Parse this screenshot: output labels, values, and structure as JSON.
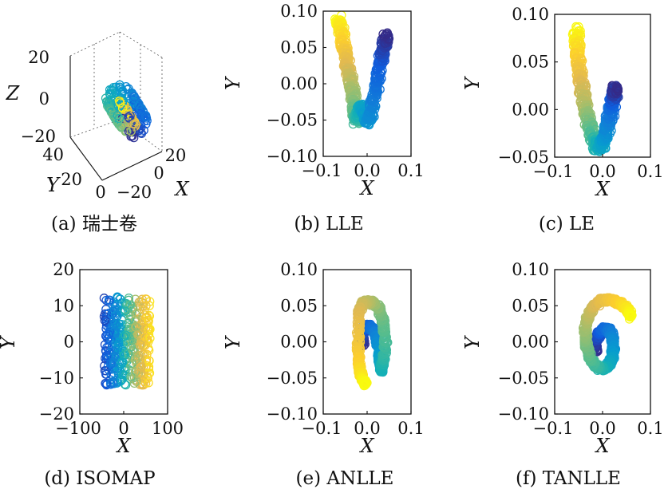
{
  "chart_data": [
    {
      "id": "a",
      "type": "scatter3d",
      "caption": "(a) 瑞士卷",
      "xlabel": "X",
      "ylabel": "Y",
      "zlabel": "Z",
      "x_ticks": [
        "−20",
        "0",
        "20"
      ],
      "y_ticks": [
        "0",
        "20",
        "40"
      ],
      "z_ticks": [
        "20",
        "0",
        "−20"
      ],
      "xlim": [
        -20,
        20
      ],
      "ylim": [
        0,
        40
      ],
      "zlim": [
        -20,
        20
      ],
      "shape": "swiss-roll"
    },
    {
      "id": "b",
      "type": "scatter",
      "caption": "(b) LLE",
      "xlabel": "X",
      "ylabel": "Y",
      "xlim": [
        -0.1,
        0.1
      ],
      "ylim": [
        -0.1,
        0.1
      ],
      "x_ticks": [
        {
          "v": -0.1,
          "t": "−0.1"
        },
        {
          "v": 0,
          "t": "0.0"
        },
        {
          "v": 0.1,
          "t": "0.1"
        }
      ],
      "y_ticks": [
        {
          "v": 0.1,
          "t": "0.10"
        },
        {
          "v": 0.05,
          "t": "0.05"
        },
        {
          "v": 0,
          "t": "0.00"
        },
        {
          "v": -0.05,
          "t": "−0.05"
        },
        {
          "v": -0.1,
          "t": "−0.10"
        }
      ],
      "shape": "v",
      "series": [
        {
          "x": [
            -0.065,
            -0.06,
            -0.055,
            -0.05,
            -0.045,
            -0.04,
            -0.035,
            -0.03,
            -0.027,
            -0.025,
            -0.02,
            -0.015,
            -0.008,
            0.0,
            0.01,
            0.018,
            0.025,
            0.032,
            0.038,
            0.043
          ],
          "y": [
            0.09,
            0.075,
            0.058,
            0.042,
            0.026,
            0.01,
            -0.006,
            -0.022,
            -0.038,
            -0.05,
            -0.045,
            -0.035,
            -0.03,
            -0.055,
            -0.04,
            -0.015,
            0.01,
            0.032,
            0.05,
            0.065
          ]
        }
      ]
    },
    {
      "id": "c",
      "type": "scatter",
      "caption": "(c) LE",
      "xlabel": "X",
      "ylabel": "Y",
      "xlim": [
        -0.1,
        0.1
      ],
      "ylim": [
        -0.05,
        0.1
      ],
      "x_ticks": [
        {
          "v": -0.1,
          "t": "−0.1"
        },
        {
          "v": 0,
          "t": "0.0"
        },
        {
          "v": 0.1,
          "t": "0.1"
        }
      ],
      "y_ticks": [
        {
          "v": 0.1,
          "t": "0.10"
        },
        {
          "v": 0.05,
          "t": "0.05"
        },
        {
          "v": 0,
          "t": "0.00"
        },
        {
          "v": -0.05,
          "t": "−0.05"
        }
      ],
      "shape": "v",
      "series": [
        {
          "x": [
            -0.055,
            -0.053,
            -0.05,
            -0.047,
            -0.043,
            -0.038,
            -0.033,
            -0.027,
            -0.02,
            -0.012,
            -0.005,
            0.002,
            0.008,
            0.013,
            0.018,
            0.022,
            0.025,
            0.027
          ],
          "y": [
            0.083,
            0.068,
            0.052,
            0.037,
            0.022,
            0.008,
            -0.006,
            -0.018,
            -0.029,
            -0.037,
            -0.039,
            -0.034,
            -0.024,
            -0.012,
            0.0,
            0.01,
            0.017,
            0.022
          ]
        }
      ]
    },
    {
      "id": "d",
      "type": "scatter",
      "caption": "(d) ISOMAP",
      "xlabel": "X",
      "ylabel": "Y",
      "xlim": [
        -100,
        100
      ],
      "ylim": [
        -20,
        20
      ],
      "x_ticks": [
        {
          "v": -100,
          "t": "−100"
        },
        {
          "v": 0,
          "t": "0"
        },
        {
          "v": 100,
          "t": "100"
        }
      ],
      "y_ticks": [
        {
          "v": 20,
          "t": "20"
        },
        {
          "v": 10,
          "t": "10"
        },
        {
          "v": 0,
          "t": "0"
        },
        {
          "v": -10,
          "t": "−10"
        },
        {
          "v": -20,
          "t": "−20"
        }
      ],
      "shape": "rectangle",
      "region": {
        "x": [
          -45,
          60
        ],
        "y": [
          -12,
          12.5
        ]
      }
    },
    {
      "id": "e",
      "type": "scatter",
      "caption": "(e) ANLLE",
      "xlabel": "X",
      "ylabel": "Y",
      "xlim": [
        -0.1,
        0.1
      ],
      "ylim": [
        -0.1,
        0.1
      ],
      "x_ticks": [
        {
          "v": -0.1,
          "t": "−0.1"
        },
        {
          "v": 0,
          "t": "0.0"
        },
        {
          "v": 0.1,
          "t": "0.1"
        }
      ],
      "y_ticks": [
        {
          "v": 0.1,
          "t": "0.10"
        },
        {
          "v": 0.05,
          "t": "0.05"
        },
        {
          "v": 0,
          "t": "0.00"
        },
        {
          "v": -0.05,
          "t": "−0.05"
        },
        {
          "v": -0.1,
          "t": "−0.10"
        }
      ],
      "shape": "spiral",
      "series": [
        {
          "x": [
            -0.008,
            -0.012,
            -0.008,
            0.002,
            0.012,
            0.02,
            0.025,
            0.028,
            0.03,
            0.032,
            0.037,
            0.042,
            0.036,
            0.025,
            0.01,
            -0.005,
            -0.018,
            -0.02,
            -0.02,
            -0.018,
            -0.012,
            -0.004
          ],
          "y": [
            -0.002,
            0.008,
            0.018,
            0.022,
            0.018,
            0.008,
            -0.005,
            -0.018,
            -0.03,
            -0.04,
            -0.025,
            0.0,
            0.03,
            0.048,
            0.055,
            0.055,
            0.045,
            0.02,
            -0.01,
            -0.035,
            -0.05,
            -0.058
          ]
        }
      ]
    },
    {
      "id": "f",
      "type": "scatter",
      "caption": "(f) TANLLE",
      "xlabel": "X",
      "ylabel": "Y",
      "xlim": [
        -0.1,
        0.1
      ],
      "ylim": [
        -0.1,
        0.1
      ],
      "x_ticks": [
        {
          "v": -0.1,
          "t": "−0.1"
        },
        {
          "v": 0,
          "t": "0.0"
        },
        {
          "v": 0.1,
          "t": "0.1"
        }
      ],
      "y_ticks": [
        {
          "v": 0.1,
          "t": "0.10"
        },
        {
          "v": 0.05,
          "t": "0.05"
        },
        {
          "v": 0,
          "t": "0.00"
        },
        {
          "v": -0.05,
          "t": "−0.05"
        },
        {
          "v": -0.1,
          "t": "−0.10"
        }
      ],
      "shape": "spiral",
      "series": [
        {
          "x": [
            -0.015,
            -0.013,
            -0.006,
            0.004,
            0.014,
            0.021,
            0.023,
            0.02,
            0.012,
            0.0,
            -0.014,
            -0.026,
            -0.034,
            -0.036,
            -0.031,
            -0.019,
            -0.002,
            0.018,
            0.037,
            0.052,
            0.06
          ],
          "y": [
            -0.012,
            0.002,
            0.013,
            0.018,
            0.016,
            0.006,
            -0.008,
            -0.022,
            -0.033,
            -0.038,
            -0.034,
            -0.022,
            -0.004,
            0.016,
            0.034,
            0.049,
            0.057,
            0.058,
            0.053,
            0.045,
            0.034
          ]
        }
      ]
    }
  ]
}
